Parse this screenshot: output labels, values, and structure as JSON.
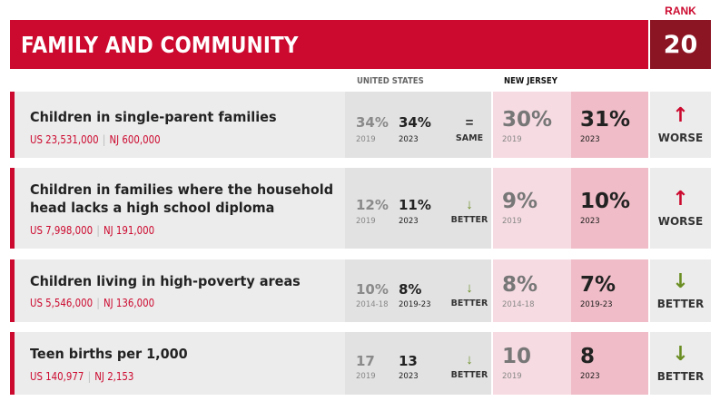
{
  "header": {
    "title": "FAMILY AND COMMUNITY",
    "rank_label": "RANK",
    "rank_value": "20"
  },
  "columns": {
    "us": "UNITED STATES",
    "nj": "NEW JERSEY"
  },
  "colors": {
    "brand_red": "#cc0a2f",
    "rank_bg": "#8c1524",
    "better_green": "#6b8e23",
    "worse_red": "#cc0a2f"
  },
  "rows": [
    {
      "measure": "Children in single-parent families",
      "us_count": "US 23,531,000",
      "nj_count": "NJ 600,000",
      "us_base": "34%",
      "us_base_year": "2019",
      "us_cur": "34%",
      "us_cur_year": "2023",
      "us_change_icon": "equals-icon",
      "us_change_arrow": "=",
      "us_change_label": "SAME",
      "nj_base": "30%",
      "nj_base_year": "2019",
      "nj_cur": "31%",
      "nj_cur_year": "2023",
      "change_icon": "arrow-up-icon",
      "change_arrow": "↑",
      "change_label": "WORSE"
    },
    {
      "measure": "Children in families where the household head lacks a high school diploma",
      "us_count": "US 7,998,000",
      "nj_count": "NJ 191,000",
      "us_base": "12%",
      "us_base_year": "2019",
      "us_cur": "11%",
      "us_cur_year": "2023",
      "us_change_icon": "arrow-down-icon",
      "us_change_arrow": "↓",
      "us_change_label": "BETTER",
      "nj_base": "9%",
      "nj_base_year": "2019",
      "nj_cur": "10%",
      "nj_cur_year": "2023",
      "change_icon": "arrow-up-icon",
      "change_arrow": "↑",
      "change_label": "WORSE"
    },
    {
      "measure": "Children living in high-poverty areas",
      "us_count": "US 5,546,000",
      "nj_count": "NJ 136,000",
      "us_base": "10%",
      "us_base_year": "2014-18",
      "us_cur": "8%",
      "us_cur_year": "2019-23",
      "us_change_icon": "arrow-down-icon",
      "us_change_arrow": "↓",
      "us_change_label": "BETTER",
      "nj_base": "8%",
      "nj_base_year": "2014-18",
      "nj_cur": "7%",
      "nj_cur_year": "2019-23",
      "change_icon": "arrow-down-icon",
      "change_arrow": "↓",
      "change_label": "BETTER"
    },
    {
      "measure": "Teen births per 1,000",
      "us_count": "US 140,977",
      "nj_count": "NJ 2,153",
      "us_base": "17",
      "us_base_year": "2019",
      "us_cur": "13",
      "us_cur_year": "2023",
      "us_change_icon": "arrow-down-icon",
      "us_change_arrow": "↓",
      "us_change_label": "BETTER",
      "nj_base": "10",
      "nj_base_year": "2019",
      "nj_cur": "8",
      "nj_cur_year": "2023",
      "change_icon": "arrow-down-icon",
      "change_arrow": "↓",
      "change_label": "BETTER"
    }
  ]
}
